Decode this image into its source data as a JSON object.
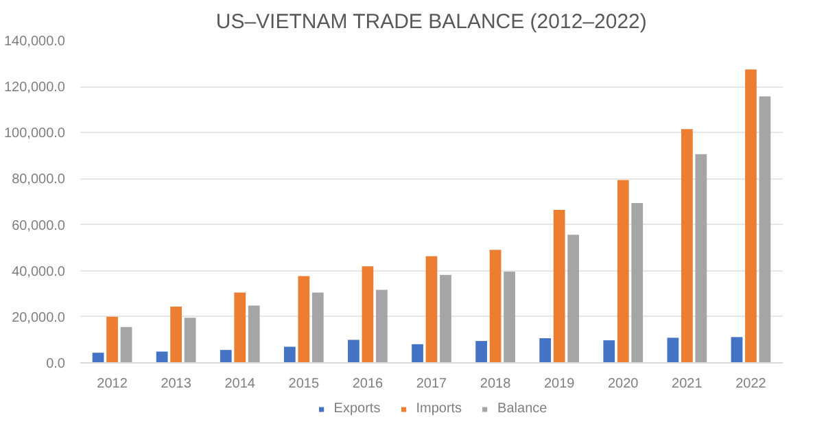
{
  "chart_data": {
    "type": "bar",
    "title": "US–VIETNAM TRADE BALANCE (2012–2022)",
    "categories": [
      "2012",
      "2013",
      "2014",
      "2015",
      "2016",
      "2017",
      "2018",
      "2019",
      "2020",
      "2021",
      "2022"
    ],
    "series": [
      {
        "name": "Exports",
        "color": "#4472c4",
        "values": [
          4400,
          4900,
          5600,
          7000,
          10000,
          8100,
          9500,
          10700,
          9800,
          10900,
          11200
        ]
      },
      {
        "name": "Imports",
        "color": "#ed7d31",
        "values": [
          20000,
          24400,
          30500,
          37700,
          41900,
          46300,
          49100,
          66400,
          79400,
          101500,
          127400
        ]
      },
      {
        "name": "Balance",
        "color": "#a5a5a5",
        "values": [
          15600,
          19600,
          24900,
          30500,
          31700,
          38200,
          39600,
          55600,
          69400,
          90600,
          115700
        ]
      }
    ],
    "ylim": [
      0,
      140000
    ],
    "yticks": [
      {
        "value": 0,
        "label": "0.0"
      },
      {
        "value": 20000,
        "label": "20,000.0"
      },
      {
        "value": 40000,
        "label": "40,000.0"
      },
      {
        "value": 60000,
        "label": "60,000.0"
      },
      {
        "value": 80000,
        "label": "80,000.0"
      },
      {
        "value": 100000,
        "label": "100,000.0"
      },
      {
        "value": 120000,
        "label": "120,000.0"
      },
      {
        "value": 140000,
        "label": "140,000.0"
      }
    ],
    "grid": "y",
    "legend": "bottom"
  }
}
